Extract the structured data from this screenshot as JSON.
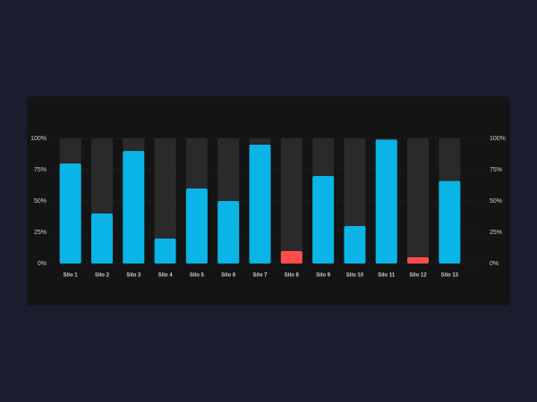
{
  "chart_data": {
    "type": "bar",
    "categories": [
      "Silo 1",
      "Silo 2",
      "Silo 3",
      "Silo 4",
      "Silo 5",
      "Silo 6",
      "Silo 7",
      "Silo 8",
      "Silo 9",
      "Silo 10",
      "Silo 11",
      "Silo 12",
      "Silo 13"
    ],
    "values": [
      80,
      40,
      90,
      20,
      60,
      50,
      95,
      10,
      70,
      30,
      99,
      5,
      66
    ],
    "colors": [
      "#0ab4e6",
      "#0ab4e6",
      "#0ab4e6",
      "#0ab4e6",
      "#0ab4e6",
      "#0ab4e6",
      "#0ab4e6",
      "#ff4d4d",
      "#0ab4e6",
      "#0ab4e6",
      "#0ab4e6",
      "#ff4d4d",
      "#0ab4e6"
    ],
    "track_color": "#2a2a2a",
    "ylim": [
      0,
      100
    ],
    "yticks": [
      {
        "value": 0,
        "label": "0%"
      },
      {
        "value": 25,
        "label": "25%"
      },
      {
        "value": 50,
        "label": "50%"
      },
      {
        "value": 75,
        "label": "75%"
      },
      {
        "value": 100,
        "label": "100%"
      }
    ],
    "grid": true
  }
}
